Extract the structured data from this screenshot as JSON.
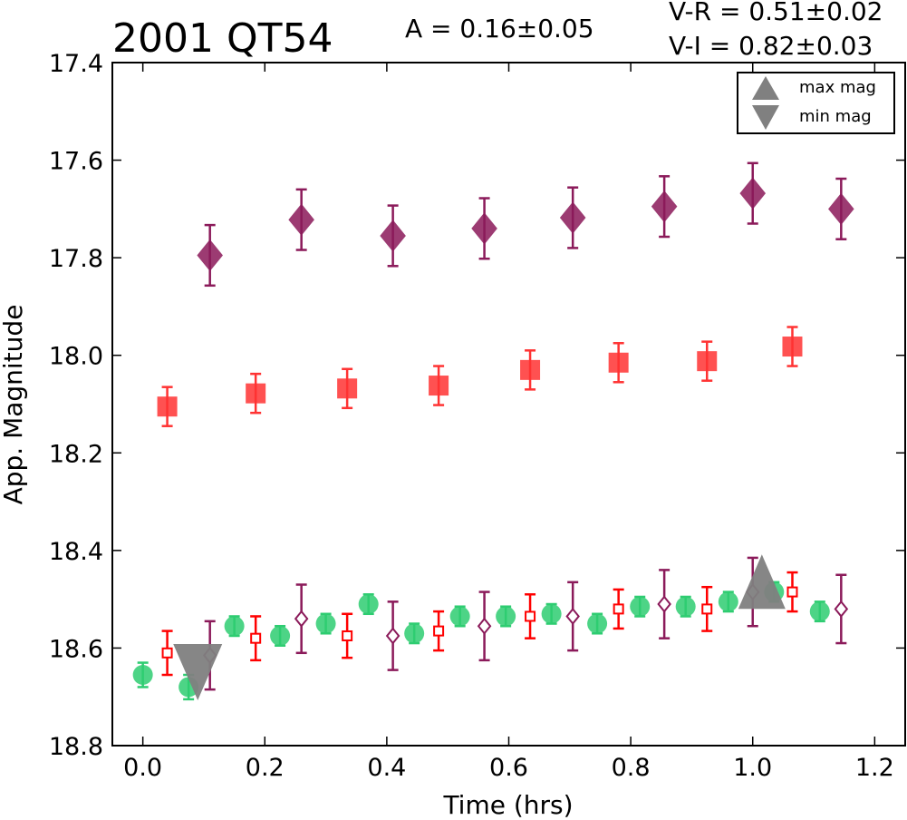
{
  "chart_data": {
    "type": "scatter",
    "title": "2001 QT54",
    "amplitude_label": "A  = 0.16±0.05",
    "color_labels": [
      "V-R = 0.51±0.02",
      "V-I  = 0.82±0.03"
    ],
    "xlabel": "Time (hrs)",
    "ylabel": "App. Magnitude",
    "xlim": [
      -0.05,
      1.25
    ],
    "ylim": [
      18.8,
      17.4
    ],
    "y_inverted": true,
    "xticks": [
      "0.0",
      "0.2",
      "0.4",
      "0.6",
      "0.8",
      "1.0",
      "1.2"
    ],
    "yticks": [
      "17.4",
      "17.6",
      "17.8",
      "18.0",
      "18.2",
      "18.4",
      "18.6",
      "18.8"
    ],
    "legend": {
      "placement": "top-right",
      "entries": [
        {
          "label": "max mag",
          "marker": "triangle-up",
          "color": "#808080"
        },
        {
          "label": "min mag",
          "marker": "triangle-down",
          "color": "#808080"
        }
      ]
    },
    "series": [
      {
        "marker": "circle",
        "filled": true,
        "color": "#2ecc71",
        "x": [
          0.0,
          0.075,
          0.15,
          0.225,
          0.3,
          0.37,
          0.445,
          0.52,
          0.595,
          0.67,
          0.745,
          0.815,
          0.89,
          0.96,
          1.035,
          1.11
        ],
        "y": [
          18.655,
          18.68,
          18.555,
          18.575,
          18.55,
          18.51,
          18.57,
          18.535,
          18.535,
          18.53,
          18.55,
          18.515,
          18.515,
          18.505,
          18.485,
          18.525
        ],
        "err": [
          0.025,
          0.025,
          0.02,
          0.02,
          0.02,
          0.02,
          0.02,
          0.02,
          0.02,
          0.02,
          0.02,
          0.02,
          0.02,
          0.02,
          0.02,
          0.02
        ]
      },
      {
        "marker": "square",
        "filled": false,
        "color": "#ff0000",
        "x": [
          0.04,
          0.185,
          0.335,
          0.485,
          0.635,
          0.78,
          0.925,
          1.065
        ],
        "y": [
          18.61,
          18.58,
          18.575,
          18.565,
          18.535,
          18.52,
          18.52,
          18.485
        ],
        "err": [
          0.045,
          0.045,
          0.045,
          0.04,
          0.045,
          0.04,
          0.045,
          0.04
        ]
      },
      {
        "marker": "diamond",
        "filled": false,
        "color": "#8b1a5a",
        "x": [
          0.11,
          0.26,
          0.41,
          0.56,
          0.705,
          0.855,
          1.0,
          1.145
        ],
        "y": [
          18.615,
          18.54,
          18.575,
          18.555,
          18.535,
          18.51,
          18.485,
          18.52
        ],
        "err": [
          0.07,
          0.07,
          0.07,
          0.07,
          0.07,
          0.07,
          0.07,
          0.07
        ]
      },
      {
        "marker": "square",
        "filled": true,
        "color": "#ff3333",
        "x": [
          0.04,
          0.185,
          0.335,
          0.485,
          0.635,
          0.78,
          0.925,
          1.065
        ],
        "y": [
          18.105,
          18.078,
          18.068,
          18.062,
          18.03,
          18.015,
          18.012,
          17.982
        ],
        "err": [
          0.04,
          0.04,
          0.04,
          0.04,
          0.04,
          0.04,
          0.04,
          0.04
        ]
      },
      {
        "marker": "diamond",
        "filled": true,
        "color": "#8b1a5a",
        "x": [
          0.11,
          0.26,
          0.41,
          0.56,
          0.705,
          0.855,
          1.0,
          1.145
        ],
        "y": [
          17.795,
          17.722,
          17.755,
          17.74,
          17.718,
          17.695,
          17.668,
          17.7
        ],
        "err": [
          0.062,
          0.062,
          0.062,
          0.062,
          0.062,
          0.062,
          0.062,
          0.062
        ]
      }
    ],
    "extrema": [
      {
        "type": "max",
        "marker": "triangle-up",
        "x": 1.015,
        "y": 18.49,
        "color": "#808080"
      },
      {
        "type": "min",
        "marker": "triangle-down",
        "x": 0.09,
        "y": 18.64,
        "color": "#808080"
      }
    ]
  }
}
